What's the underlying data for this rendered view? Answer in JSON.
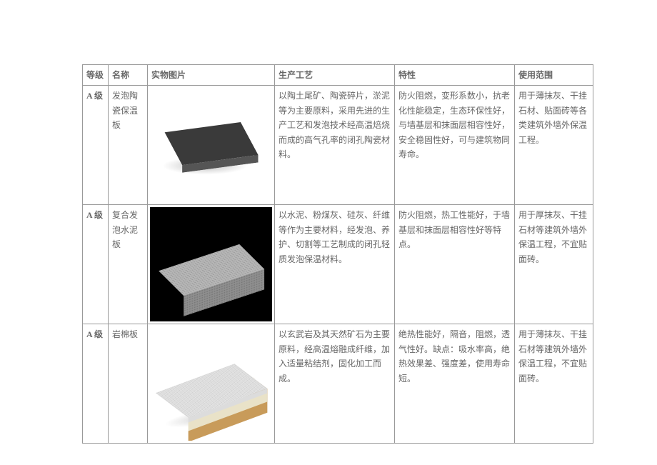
{
  "headers": {
    "grade": "等级",
    "name": "名称",
    "image": "实物图片",
    "process": "生产工艺",
    "property": "特性",
    "usage": "使用范围"
  },
  "rows": [
    {
      "grade": "A 级",
      "name": "发泡陶瓷保温板",
      "process": "以陶土尾矿、陶瓷碎片，淤泥等为主要原料，采用先进的生产工艺和发泡技术经高温焙烧而成的高气孔率的闭孔陶瓷材料。",
      "property": "防火阻燃，变形系数小，抗老化性能稳定，生态环保性好，与墙基层和抹面层相容性好，安全稳固性好，可与建筑物同寿命。",
      "usage": "用于薄抹灰、干挂石材、贴面砖等各类建筑外墙外保温工程。"
    },
    {
      "grade": "A 级",
      "name": "复合发泡水泥板",
      "process": "以水泥、粉煤灰、硅灰、纤维等作为主要材料，经发泡、养护、切割等工艺制成的闭孔轻质发泡保温材料。",
      "property": "防火阻燃，热工性能好，于墙基层和抹面层相容性好等特点。",
      "usage": "用于厚抹灰、干挂石材等建筑外墙外保温工程，不宜贴面砖。"
    },
    {
      "grade": "A 级",
      "name": "岩棉板",
      "process": "以玄武岩及其天然矿石为主要原料，经高温熔融成纤维，加入适量粘结剂，固化加工而成。",
      "property": "绝热性能好，隔音，阻燃，透气性好。缺点：吸水率高，绝热效果差、强度差，使用寿命短。",
      "usage": "用于薄抹灰、干挂石材等建筑外墙外保温工程，不宜贴面砖。"
    }
  ]
}
